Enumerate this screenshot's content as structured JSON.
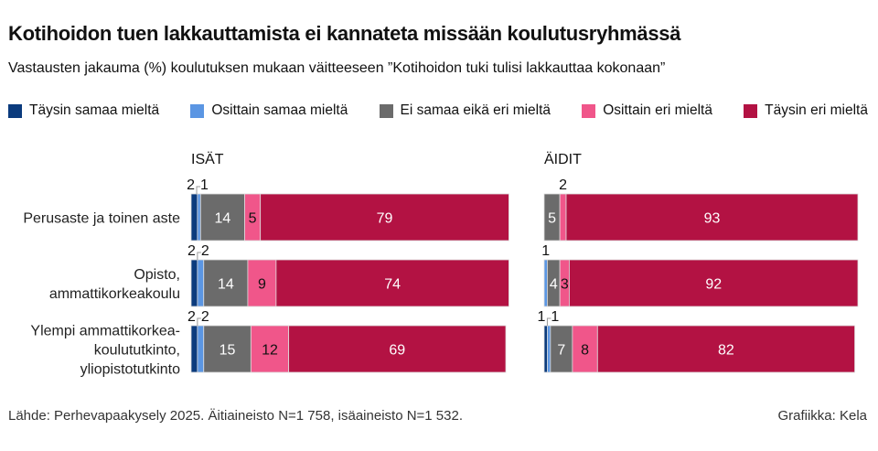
{
  "title": "Kotihoidon tuen lakkauttamista ei kannateta missään koulutusryhmässä",
  "subtitle": "Vastausten jakauma (%) koulutuksen mukaan väitteeseen ”Kotihoidon tuki tulisi lakkauttaa kokonaan”",
  "legend": [
    {
      "label": "Täysin samaa mieltä",
      "color": "#0b3b7d"
    },
    {
      "label": "Osittain samaa mieltä",
      "color": "#5b96e3"
    },
    {
      "label": "Ei samaa eikä eri mieltä",
      "color": "#6b6b6b"
    },
    {
      "label": "Osittain eri mieltä",
      "color": "#f0568a"
    },
    {
      "label": "Täysin eri mieltä",
      "color": "#b31243"
    }
  ],
  "source": "Lähde: Perhevapaakysely 2025. Äitiaineisto N=1 758, isäaineisto N=1 532.",
  "credit": "Grafiikka: Kela",
  "chart_data": [
    {
      "type": "bar",
      "stacked": true,
      "orientation": "horizontal",
      "title": "ISÄT",
      "categories": [
        "Perusaste ja toinen aste",
        "Opisto,\nammattikorkeakoulu",
        "Ylempi ammattikorkea-\nkoulututkinto,\nyliopistotutkinto"
      ],
      "series": [
        {
          "name": "Täysin samaa mieltä",
          "values": [
            2,
            2,
            2
          ]
        },
        {
          "name": "Osittain samaa mieltä",
          "values": [
            1,
            2,
            2
          ]
        },
        {
          "name": "Ei samaa eikä eri mieltä",
          "values": [
            14,
            14,
            15
          ]
        },
        {
          "name": "Osittain eri mieltä",
          "values": [
            5,
            9,
            12
          ]
        },
        {
          "name": "Täysin eri mieltä",
          "values": [
            79,
            74,
            69
          ]
        }
      ],
      "xlim": [
        0,
        100
      ]
    },
    {
      "type": "bar",
      "stacked": true,
      "orientation": "horizontal",
      "title": "ÄIDIT",
      "categories": [
        "Perusaste ja toinen aste",
        "Opisto,\nammattikorkeakoulu",
        "Ylempi ammattikorkea-\nkoulututkinto,\nyliopistotutkinto"
      ],
      "series": [
        {
          "name": "Täysin samaa mieltä",
          "values": [
            0,
            0,
            1
          ]
        },
        {
          "name": "Osittain samaa mieltä",
          "values": [
            0,
            1,
            1
          ]
        },
        {
          "name": "Ei samaa eikä eri mieltä",
          "values": [
            5,
            4,
            7
          ]
        },
        {
          "name": "Osittain eri mieltä",
          "values": [
            2,
            3,
            8
          ]
        },
        {
          "name": "Täysin eri mieltä",
          "values": [
            93,
            92,
            82
          ]
        }
      ],
      "xlim": [
        0,
        100
      ]
    }
  ]
}
